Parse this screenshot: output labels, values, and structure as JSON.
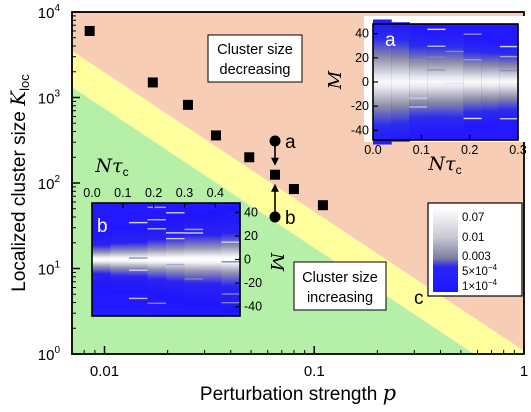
{
  "chart_data": {
    "main": {
      "type": "scatter",
      "xscale": "log",
      "yscale": "log",
      "xlim": [
        0.007,
        1
      ],
      "ylim": [
        1,
        10000
      ],
      "xticks": [
        0.01,
        0.1,
        1
      ],
      "xtick_labels": [
        "0.01",
        "0.1",
        "1"
      ],
      "yticks": [
        1,
        10,
        100,
        1000,
        10000
      ],
      "ytick_labels_mantissa": [
        "10",
        "10",
        "10",
        "10",
        "10"
      ],
      "ytick_labels_exp": [
        "0",
        "1",
        "2",
        "3",
        "4"
      ],
      "xlabel": "Perturbation strength ",
      "xlabel_var": "p",
      "ylabel": "Localized cluster size ",
      "ylabel_var": "K",
      "ylabel_sub": "loc",
      "points": [
        {
          "x": 0.0085,
          "y": 6000
        },
        {
          "x": 0.017,
          "y": 1500
        },
        {
          "x": 0.025,
          "y": 820
        },
        {
          "x": 0.034,
          "y": 360
        },
        {
          "x": 0.049,
          "y": 200
        },
        {
          "x": 0.065,
          "y": 125
        },
        {
          "x": 0.08,
          "y": 85
        },
        {
          "x": 0.11,
          "y": 55
        }
      ],
      "region_decreasing": "Cluster size\ndecreasing",
      "region_increasing": "Cluster size\nincreasing",
      "line_label": "c",
      "markers": [
        {
          "label": "a",
          "x": 0.065,
          "y": 310
        },
        {
          "label": "b",
          "x": 0.065,
          "y": 40
        }
      ],
      "colors": {
        "decreasing": "#f7cdb5",
        "increasing": "#b6f0a8",
        "band": "#ffff9e",
        "marker": "#000000"
      }
    },
    "inset_a": {
      "type": "heatmap",
      "label": "a",
      "xlim": [
        0,
        0.3
      ],
      "ylim": [
        -48,
        48
      ],
      "xtick_labels": [
        "0.0",
        "0.1",
        "0.2",
        "0.3"
      ],
      "xticks": [
        0,
        0.1,
        0.2,
        0.3
      ],
      "yticks": [
        -40,
        -20,
        0,
        20,
        40
      ],
      "ytick_labels": [
        "-40",
        "-20",
        "0",
        "20",
        "40"
      ],
      "ylabel": "M",
      "xlabel_var": "N",
      "xlabel_tau": "τ",
      "xlabel_sub": "c"
    },
    "inset_b": {
      "type": "heatmap",
      "label": "b",
      "xlim": [
        0,
        0.48
      ],
      "ylim": [
        -48,
        48
      ],
      "xtick_labels": [
        "0.0",
        "0.1",
        "0.2",
        "0.3",
        "0.4"
      ],
      "xticks": [
        0,
        0.1,
        0.2,
        0.3,
        0.4
      ],
      "yticks": [
        -40,
        -20,
        0,
        20,
        40
      ],
      "ytick_labels": [
        "-40",
        "-20",
        "0",
        "20",
        "40"
      ],
      "ylabel": "M",
      "xlabel_var": "N",
      "xlabel_tau": "τ",
      "xlabel_sub": "c"
    },
    "colorbar": {
      "levels": [
        "0.07",
        "0.01",
        "0.003"
      ],
      "levels_exp": [
        {
          "mantissa": "5×10",
          "exp": "−4"
        },
        {
          "mantissa": "1×10",
          "exp": "−4"
        }
      ],
      "colors": [
        "#ffffff",
        "#9a9ab4",
        "#1b17ff"
      ]
    }
  }
}
